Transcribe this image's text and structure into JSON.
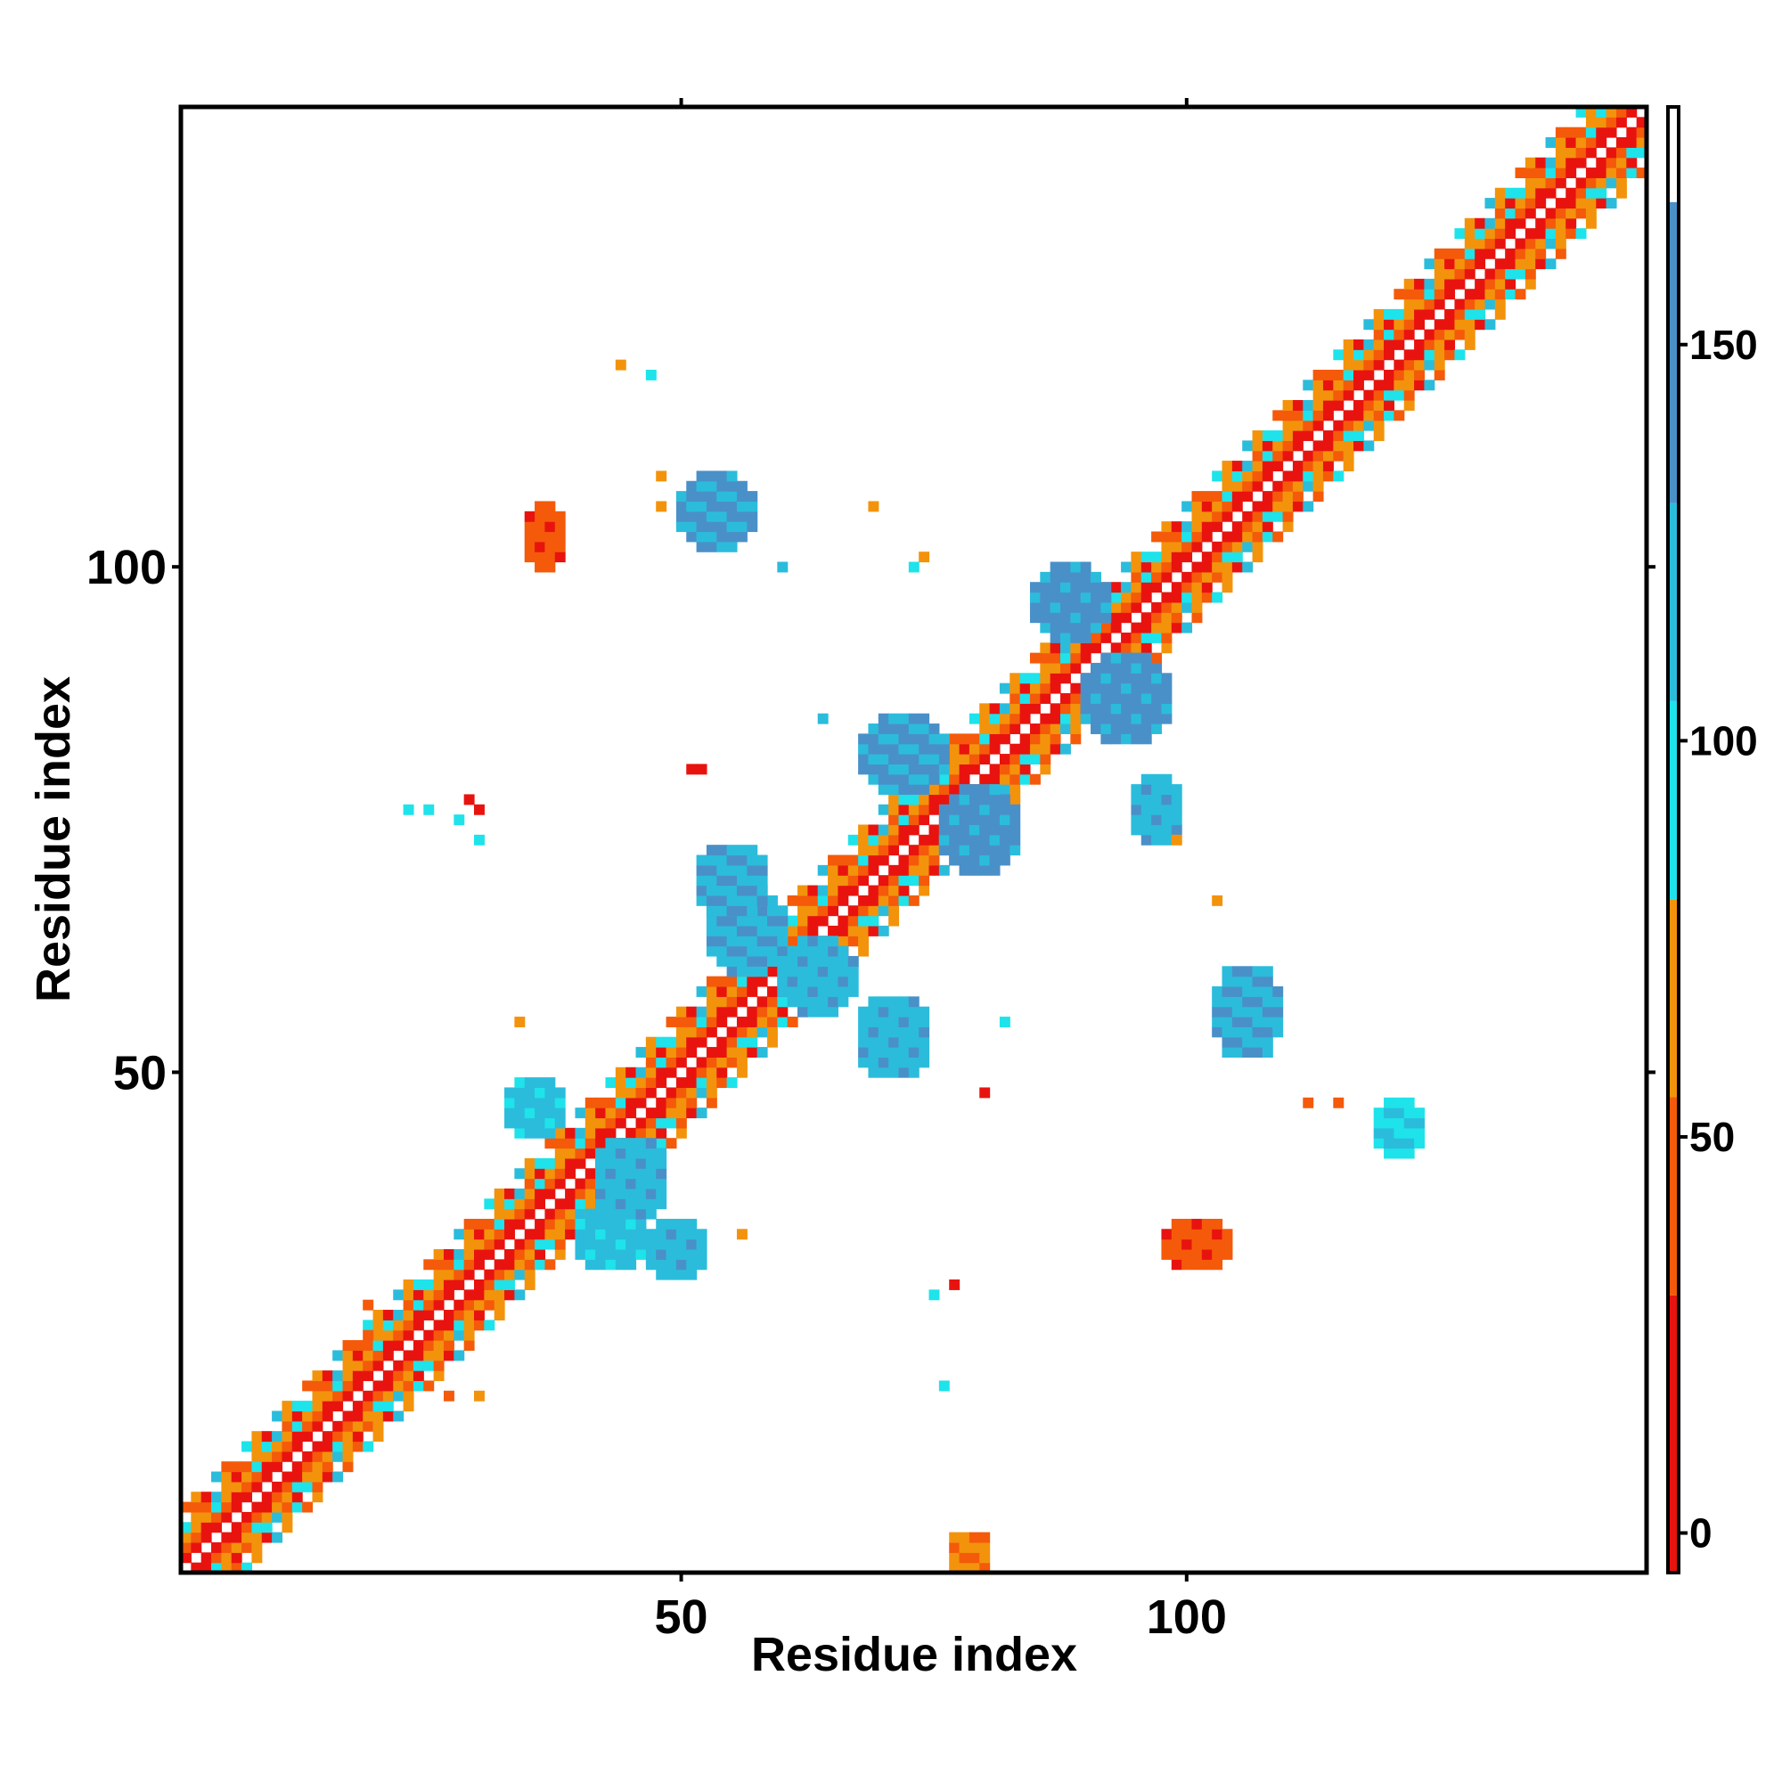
{
  "chart_data": {
    "type": "heatmap",
    "xlabel": "Residue index",
    "ylabel": "Residue index",
    "xlim": [
      1,
      145
    ],
    "ylim": [
      1,
      145
    ],
    "x_ticks": [
      50,
      100
    ],
    "y_ticks": [
      50,
      100
    ],
    "x_tick_labels": [
      "50",
      "100"
    ],
    "y_tick_labels": [
      "50",
      "100"
    ],
    "colorbar": {
      "range": [
        -5,
        180
      ],
      "ticks": [
        0,
        50,
        100,
        150
      ],
      "tick_labels": [
        "0",
        "50",
        "100",
        "150"
      ],
      "bands": [
        {
          "from": -5,
          "to": 30,
          "color": "#e8130f"
        },
        {
          "from": 30,
          "to": 55,
          "color": "#f45a0a"
        },
        {
          "from": 55,
          "to": 80,
          "color": "#f3930c"
        },
        {
          "from": 80,
          "to": 105,
          "color": "#1ee3ea"
        },
        {
          "from": 105,
          "to": 130,
          "color": "#2bbcdc"
        },
        {
          "from": 130,
          "to": 168,
          "color": "#4a90c8"
        },
        {
          "from": 168,
          "to": 180,
          "color": "#ffffff"
        }
      ]
    },
    "colors": {
      "c0": "#e8130f",
      "c1": "#f45a0a",
      "c2": "#f3930c",
      "c3": "#1ee3ea",
      "c4": "#2bbcdc",
      "c5": "#4a90c8"
    },
    "diagonal": {
      "start": 1,
      "end": 145,
      "half_width": 6
    },
    "blocks": [
      {
        "i": [
          40,
          46
        ],
        "j": [
          31,
          36
        ],
        "value": 115
      },
      {
        "i": [
          42,
          48
        ],
        "j": [
          36,
          43
        ],
        "value": 120
      },
      {
        "i": [
          47,
          52
        ],
        "j": [
          30,
          35
        ],
        "value": 118
      },
      {
        "i": [
          33,
          38
        ],
        "j": [
          44,
          49
        ],
        "value": 116
      },
      {
        "i": [
          53,
          60
        ],
        "j": [
          60,
          68
        ],
        "value": 125
      },
      {
        "i": [
          60,
          67
        ],
        "j": [
          56,
          63
        ],
        "value": 122
      },
      {
        "i": [
          52,
          58
        ],
        "j": [
          66,
          72
        ],
        "value": 128
      },
      {
        "i": [
          68,
          74
        ],
        "j": [
          50,
          57
        ],
        "value": 120
      },
      {
        "i": [
          76,
          83
        ],
        "j": [
          70,
          78
        ],
        "value": 140
      },
      {
        "i": [
          68,
          76
        ],
        "j": [
          78,
          85
        ],
        "value": 135
      },
      {
        "i": [
          90,
          98
        ],
        "j": [
          83,
          91
        ],
        "value": 138
      },
      {
        "i": [
          85,
          92
        ],
        "j": [
          93,
          100
        ],
        "value": 140
      },
      {
        "i": [
          50,
          57
        ],
        "j": [
          102,
          109
        ],
        "value": 130
      },
      {
        "i": [
          103,
          109
        ],
        "j": [
          52,
          60
        ],
        "value": 125
      },
      {
        "i": [
          98,
          104
        ],
        "j": [
          31,
          35
        ],
        "value": 40
      },
      {
        "i": [
          35,
          38
        ],
        "j": [
          100,
          106
        ],
        "value": 40
      },
      {
        "i": [
          119,
          123
        ],
        "j": [
          42,
          47
        ],
        "value": 100
      },
      {
        "i": [
          95,
          99
        ],
        "j": [
          73,
          79
        ],
        "value": 120
      },
      {
        "i": [
          77,
          80
        ],
        "j": [
          1,
          4
        ],
        "value": 60
      }
    ],
    "scatter_cells": [
      {
        "i": 103,
        "j": 67,
        "value": 65
      },
      {
        "i": 99,
        "j": 73,
        "value": 60
      },
      {
        "i": 82,
        "j": 55,
        "value": 95
      },
      {
        "i": 80,
        "j": 48,
        "value": 20
      },
      {
        "i": 77,
        "j": 29,
        "value": 20
      },
      {
        "i": 76,
        "j": 19,
        "value": 90
      },
      {
        "i": 75,
        "j": 28,
        "value": 100
      },
      {
        "i": 74,
        "j": 101,
        "value": 65
      },
      {
        "i": 73,
        "j": 100,
        "value": 95
      },
      {
        "i": 69,
        "j": 106,
        "value": 60
      },
      {
        "i": 64,
        "j": 85,
        "value": 110
      },
      {
        "i": 60,
        "j": 100,
        "value": 110
      },
      {
        "i": 56,
        "j": 34,
        "value": 55
      },
      {
        "i": 52,
        "j": 80,
        "value": 0
      },
      {
        "i": 51,
        "j": 80,
        "value": 20
      },
      {
        "i": 48,
        "j": 106,
        "value": 55
      },
      {
        "i": 48,
        "j": 109,
        "value": 55
      },
      {
        "i": 47,
        "j": 119,
        "value": 100
      },
      {
        "i": 44,
        "j": 120,
        "value": 60
      },
      {
        "i": 34,
        "j": 55,
        "value": 60
      },
      {
        "i": 30,
        "j": 73,
        "value": 100
      },
      {
        "i": 30,
        "j": 76,
        "value": 20
      },
      {
        "i": 29,
        "j": 77,
        "value": 20
      },
      {
        "i": 28,
        "j": 75,
        "value": 90
      },
      {
        "i": 25,
        "j": 76,
        "value": 90
      },
      {
        "i": 23,
        "j": 76,
        "value": 90
      },
      {
        "i": 19,
        "j": 24,
        "value": 40
      },
      {
        "i": 19,
        "j": 27,
        "value": 40
      },
      {
        "i": 27,
        "j": 18,
        "value": 40
      },
      {
        "i": 30,
        "j": 18,
        "value": 60
      },
      {
        "i": 120,
        "j": 43,
        "value": 110
      },
      {
        "i": 115,
        "j": 47,
        "value": 40
      },
      {
        "i": 112,
        "j": 47,
        "value": 50
      }
    ]
  }
}
